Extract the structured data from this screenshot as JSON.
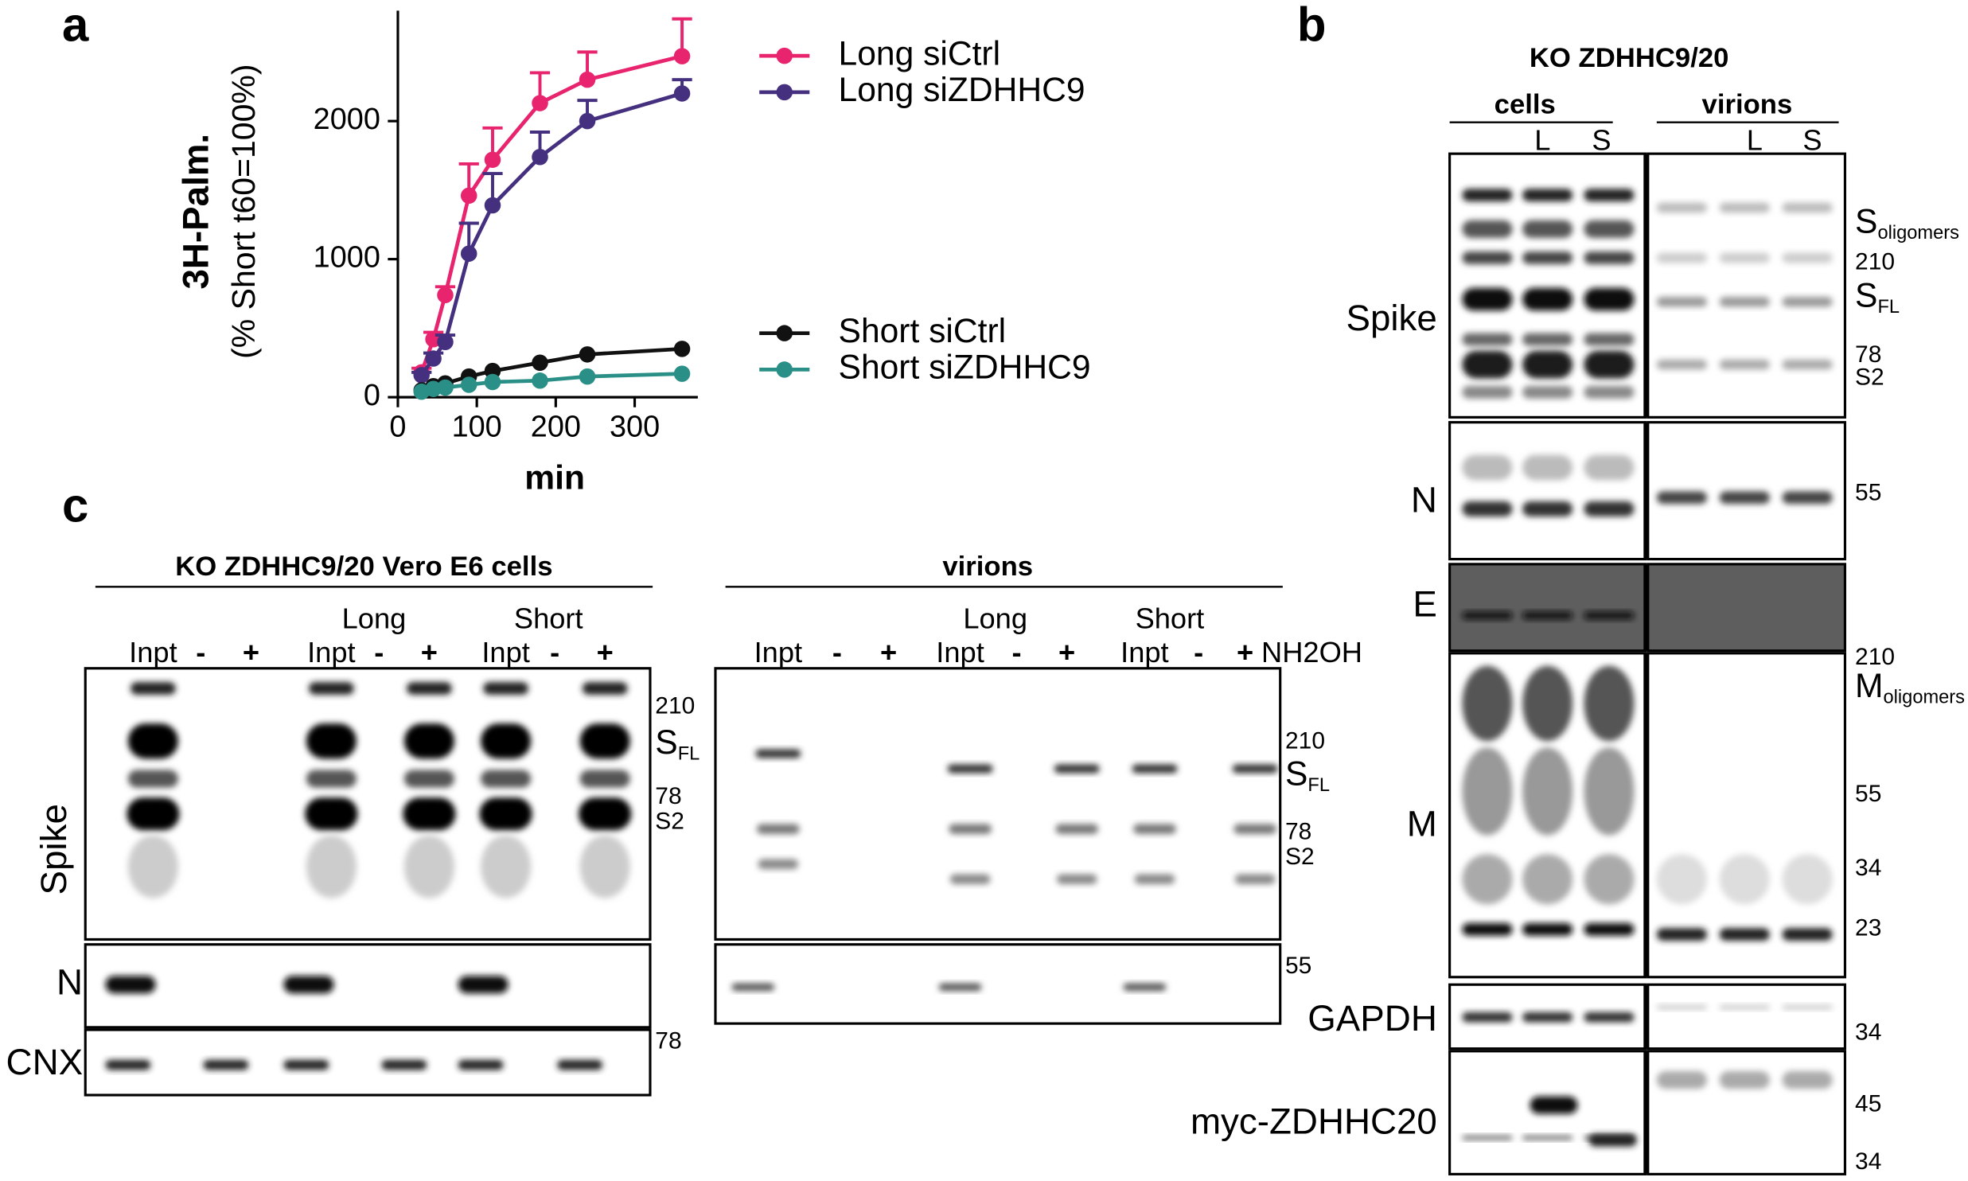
{
  "panel_labels": [
    "a",
    "b",
    "c"
  ],
  "chart_data": {
    "type": "line",
    "x": [
      30,
      45,
      60,
      90,
      120,
      180,
      240,
      360
    ],
    "xlabel": "min",
    "ylabel": [
      "3H-Palm.",
      "(% Short t60=100%)"
    ],
    "xlim": [
      0,
      380
    ],
    "ylim": [
      0,
      2800
    ],
    "xticks": [
      0,
      100,
      200,
      300
    ],
    "yticks": [
      0,
      1000,
      2000
    ],
    "series": [
      {
        "name": "Long siCtrl",
        "color": "#e8246e",
        "values": [
          180,
          420,
          740,
          1460,
          1720,
          2130,
          2300,
          2470
        ],
        "errors": [
          30,
          50,
          60,
          230,
          230,
          220,
          200,
          270
        ]
      },
      {
        "name": "Long siZDHHC9",
        "color": "#45307f",
        "values": [
          160,
          280,
          400,
          1040,
          1390,
          1740,
          2000,
          2200
        ],
        "errors": [
          20,
          40,
          50,
          220,
          230,
          180,
          150,
          100
        ]
      },
      {
        "name": "Short siCtrl",
        "color": "#111111",
        "values": [
          50,
          80,
          100,
          150,
          190,
          250,
          310,
          350
        ]
      },
      {
        "name": "Short siZDHHC9",
        "color": "#2a8f87",
        "values": [
          40,
          60,
          70,
          90,
          110,
          120,
          150,
          170
        ]
      }
    ]
  },
  "panel_b": {
    "title": "KO ZDHHC9/20",
    "groups": [
      {
        "name": "cells",
        "lanes": [
          "L",
          "S"
        ]
      },
      {
        "name": "virions",
        "lanes": [
          "L",
          "S"
        ]
      }
    ],
    "rows": [
      {
        "name": "Spike",
        "markers": [
          {
            "main": "S",
            "sub": "oligomers"
          },
          210,
          {
            "main": "S",
            "sub": "FL"
          },
          78,
          "S2"
        ]
      },
      {
        "name": "N",
        "markers": [
          55
        ]
      },
      {
        "name": "E"
      },
      {
        "name": "M",
        "markers": [
          210,
          {
            "main": "M",
            "sub": "oligomers"
          },
          55,
          34,
          23
        ]
      },
      {
        "name": "GAPDH",
        "markers": [
          34
        ]
      },
      {
        "name": "myc-ZDHHC20",
        "markers": [
          45,
          34
        ]
      }
    ]
  },
  "panel_c": {
    "cells": {
      "title": "KO ZDHHC9/20 Vero E6 cells",
      "groups": [
        "Long",
        "Short"
      ],
      "lanes": [
        "Inpt",
        "-",
        "+",
        "Inpt",
        "-",
        "+",
        "Inpt",
        "-",
        "+"
      ],
      "rows": [
        {
          "name": "Spike",
          "markers": [
            210,
            {
              "main": "S",
              "sub": "FL"
            },
            78,
            "S2"
          ]
        },
        {
          "name": "N"
        },
        {
          "name": "CNX",
          "markers": [
            78
          ]
        }
      ]
    },
    "virions": {
      "title": "virions",
      "groups": [
        "Long",
        "Short"
      ],
      "lanes": [
        "Inpt",
        "-",
        "+",
        "Inpt",
        "-",
        "+",
        "Inpt",
        "-",
        "+"
      ],
      "treatment": "NH2OH",
      "rows": [
        {
          "name": "Spike",
          "markers": [
            210,
            {
              "main": "S",
              "sub": "FL"
            },
            78,
            "S2"
          ]
        },
        {
          "name": "N",
          "markers": [
            55
          ]
        }
      ]
    }
  }
}
